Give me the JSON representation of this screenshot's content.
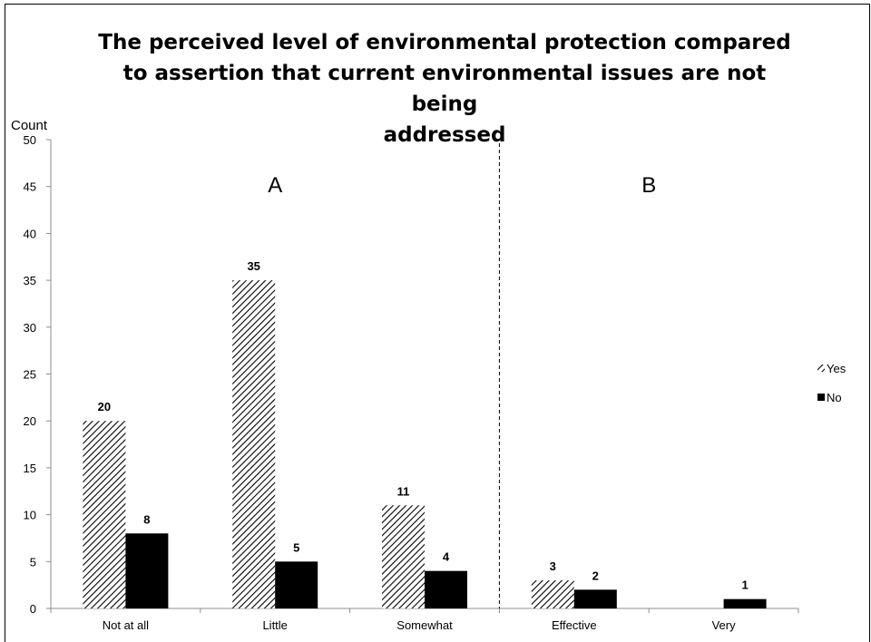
{
  "chart_data": {
    "type": "bar",
    "title": "The perceived  level of environmental protection compared\nto assertion that current environmental issues are not being\naddressed",
    "ylabel": "Count",
    "xlabel": "",
    "ylim": [
      0,
      50
    ],
    "yticks": [
      0,
      5,
      10,
      15,
      20,
      25,
      30,
      35,
      40,
      45,
      50
    ],
    "categories": [
      "Not at all",
      "Little",
      "Somewhat",
      "Effective",
      "Very"
    ],
    "series": [
      {
        "name": "Yes",
        "values": [
          20,
          35,
          11,
          3,
          0
        ],
        "data_labels": [
          "20",
          "35",
          "11",
          "3",
          ""
        ],
        "fill": "hatched"
      },
      {
        "name": "No",
        "values": [
          8,
          5,
          4,
          2,
          1
        ],
        "data_labels": [
          "8",
          "5",
          "4",
          "2",
          "1"
        ],
        "fill": "#000000"
      }
    ],
    "groups": [
      {
        "label": "A",
        "categories": [
          "Not at all",
          "Little",
          "Somewhat"
        ]
      },
      {
        "label": "B",
        "categories": [
          "Effective",
          "Very"
        ]
      }
    ],
    "legend_position": "right",
    "grid": false,
    "colors": {
      "no": "#000000",
      "yes_hatch": "#000000",
      "background": "#ffffff"
    }
  }
}
